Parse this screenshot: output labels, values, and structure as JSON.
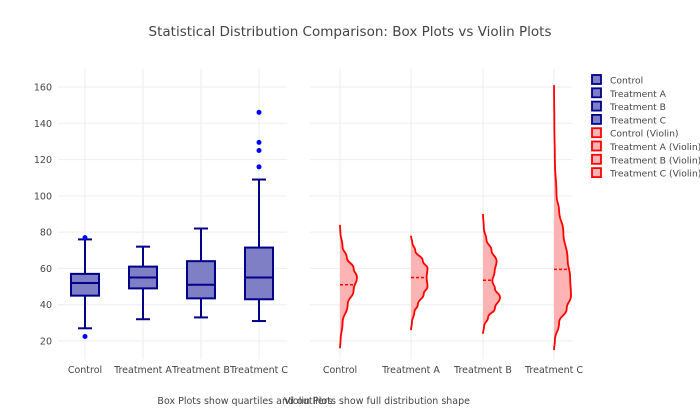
{
  "chart_data": {
    "type": "box-violin",
    "title": "Statistical Distribution Comparison: Box Plots vs Violin Plots",
    "categories": [
      "Control",
      "Treatment A",
      "Treatment B",
      "Treatment C"
    ],
    "ylim": [
      10,
      170
    ],
    "yticks": [
      20,
      40,
      60,
      80,
      100,
      120,
      140,
      160
    ],
    "ytick_labels": [
      "20",
      "40",
      "60",
      "80",
      "100",
      "120",
      "140",
      "160"
    ],
    "grid": true,
    "box_color": "#00008b",
    "box_fill": "#7f7fc5",
    "outlier_color": "#0000ff",
    "violin_color": "#ff0000",
    "violin_fill": "#ffb3b3",
    "boxes": [
      {
        "name": "Control",
        "q1": 45,
        "median": 52,
        "q3": 57,
        "lower": 27,
        "upper": 76,
        "outliers": [
          77,
          22.5
        ]
      },
      {
        "name": "Treatment A",
        "q1": 49,
        "median": 55,
        "q3": 61,
        "lower": 32,
        "upper": 72,
        "outliers": []
      },
      {
        "name": "Treatment B",
        "q1": 43.5,
        "median": 51,
        "q3": 64,
        "lower": 33,
        "upper": 82,
        "outliers": []
      },
      {
        "name": "Treatment C",
        "q1": 43,
        "median": 55,
        "q3": 71.5,
        "lower": 31,
        "upper": 109,
        "outliers": [
          116,
          125,
          129.5,
          146
        ]
      }
    ],
    "violins": [
      {
        "name": "Control (Violin)",
        "mean": 51,
        "profile": [
          [
            16,
            0
          ],
          [
            20,
            0.03
          ],
          [
            30,
            0.15
          ],
          [
            40,
            0.45
          ],
          [
            48,
            0.8
          ],
          [
            55,
            1
          ],
          [
            60,
            0.8
          ],
          [
            66,
            0.4
          ],
          [
            72,
            0.15
          ],
          [
            80,
            0.02
          ],
          [
            84,
            0
          ]
        ]
      },
      {
        "name": "Treatment A (Violin)",
        "mean": 55,
        "profile": [
          [
            26,
            0
          ],
          [
            30,
            0.05
          ],
          [
            36,
            0.2
          ],
          [
            40,
            0.4
          ],
          [
            46,
            0.75
          ],
          [
            50,
            0.97
          ],
          [
            55,
            0.92
          ],
          [
            60,
            0.97
          ],
          [
            64,
            0.7
          ],
          [
            70,
            0.25
          ],
          [
            74,
            0.08
          ],
          [
            78,
            0
          ]
        ]
      },
      {
        "name": "Treatment B (Violin)",
        "mean": 53.5,
        "profile": [
          [
            24,
            0
          ],
          [
            28,
            0.06
          ],
          [
            33,
            0.3
          ],
          [
            38,
            0.7
          ],
          [
            44,
            1
          ],
          [
            49,
            0.7
          ],
          [
            53,
            0.55
          ],
          [
            58,
            0.68
          ],
          [
            64,
            0.8
          ],
          [
            70,
            0.5
          ],
          [
            76,
            0.2
          ],
          [
            82,
            0.05
          ],
          [
            90,
            0
          ]
        ]
      },
      {
        "name": "Treatment C (Violin)",
        "mean": 59.5,
        "profile": [
          [
            15,
            0
          ],
          [
            20,
            0.05
          ],
          [
            30,
            0.3
          ],
          [
            38,
            0.75
          ],
          [
            45,
            1
          ],
          [
            55,
            0.95
          ],
          [
            65,
            0.8
          ],
          [
            80,
            0.55
          ],
          [
            92,
            0.3
          ],
          [
            100,
            0.15
          ],
          [
            120,
            0.05
          ],
          [
            140,
            0.02
          ],
          [
            161,
            0
          ]
        ]
      }
    ],
    "legend": [
      "Control",
      "Treatment A",
      "Treatment B",
      "Treatment C",
      "Control (Violin)",
      "Treatment A (Violin)",
      "Treatment B (Violin)",
      "Treatment C (Violin)"
    ],
    "legend_placement": "right",
    "annotations": [
      "Box Plots show quartiles and outliers",
      "Violin Plots show full distribution shape"
    ]
  }
}
